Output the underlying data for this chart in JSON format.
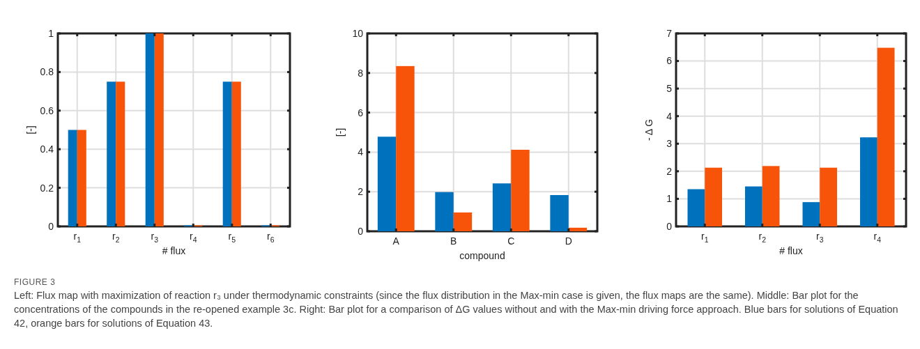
{
  "chart_data": [
    {
      "type": "bar",
      "categories": [
        "r$_{1}$",
        "r$_{2}$",
        "r$_{3}$",
        "r$_{4}$",
        "r$_{5}$",
        "r$_{6}$"
      ],
      "xlabel": "# flux",
      "ylabel": "[-]",
      "ylim": [
        0,
        1
      ],
      "yticks": [
        0,
        0.2,
        0.4,
        0.6,
        0.8,
        1
      ],
      "grid": true,
      "series": [
        {
          "color": "#0072bd",
          "values": [
            0.5,
            0.75,
            1,
            0,
            0.75,
            0
          ]
        },
        {
          "color": "#f75309",
          "values": [
            0.5,
            0.75,
            1,
            0,
            0.75,
            0
          ]
        }
      ]
    },
    {
      "type": "bar",
      "categories": [
        "A",
        "B",
        "C",
        "D"
      ],
      "xlabel": "compound",
      "ylabel": "[-]",
      "ylim": [
        0,
        10
      ],
      "yticks": [
        0,
        2,
        4,
        6,
        8,
        10
      ],
      "grid": true,
      "series": [
        {
          "color": "#0072bd",
          "values": [
            4.78,
            1.98,
            2.42,
            1.83
          ]
        },
        {
          "color": "#f75309",
          "values": [
            8.35,
            0.95,
            4.12,
            0.18
          ]
        }
      ]
    },
    {
      "type": "bar",
      "categories": [
        "r$_{1}$",
        "r$_{2}$",
        "r$_{3}$",
        "r$_{4}$"
      ],
      "xlabel": "# flux",
      "ylabel": "- Δ G",
      "ylim": [
        0,
        7
      ],
      "yticks": [
        0,
        1,
        2,
        3,
        4,
        5,
        6,
        7
      ],
      "grid": true,
      "series": [
        {
          "color": "#0072bd",
          "values": [
            1.35,
            1.45,
            0.88,
            3.23
          ]
        },
        {
          "color": "#f75309",
          "values": [
            2.13,
            2.19,
            2.13,
            6.48
          ]
        }
      ]
    },
    {
      "type": "other",
      "title": "FIGURE 3",
      "annotations": [
        "Left: Flux map with maximization of reaction r₃ under thermodynamic constraints (since the flux distribution in the Max-min case is given, the flux maps are the same). Middle: Bar plot for the concentrations of the compounds in the re-opened example 3c. Right: Bar plot for a comparison of ΔG values without and with the Max-min driving force approach. Blue bars for solutions of Equation 42, orange bars for solutions of Equation 43."
      ]
    }
  ]
}
